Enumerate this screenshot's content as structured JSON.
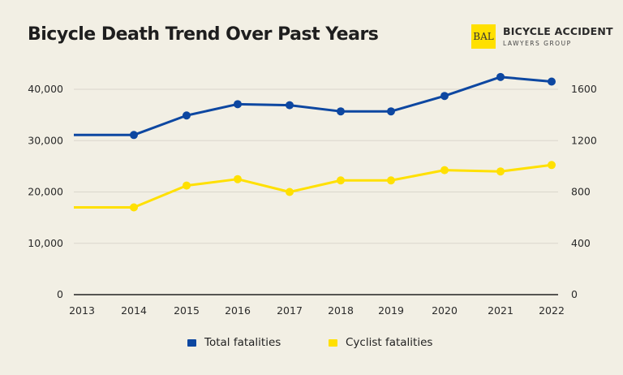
{
  "chart_data": {
    "type": "line",
    "title": "Bicycle Death Trend Over Past Years",
    "categories": [
      "2013",
      "2014",
      "2015",
      "2016",
      "2017",
      "2018",
      "2019",
      "2020",
      "2021",
      "2022"
    ],
    "series": [
      {
        "name": "Total fatalities",
        "axis": "left",
        "color": "#0d47a1",
        "values": [
          31100,
          31100,
          34900,
          37100,
          36900,
          35700,
          35700,
          38700,
          42400,
          41500
        ]
      },
      {
        "name": "Cyclist fatalities",
        "axis": "right",
        "color": "#ffe000",
        "values": [
          680,
          680,
          850,
          900,
          800,
          890,
          890,
          970,
          960,
          1010
        ]
      }
    ],
    "y_left": {
      "ylim": [
        0,
        40000
      ],
      "ticks": [
        "0",
        "10,000",
        "20,000",
        "30,000",
        "40,000"
      ],
      "tick_values": [
        0,
        10000,
        20000,
        30000,
        40000
      ]
    },
    "y_right": {
      "ylim": [
        0,
        1600
      ],
      "ticks": [
        "0",
        "400",
        "800",
        "1200",
        "1600"
      ],
      "tick_values": [
        0,
        400,
        800,
        1200,
        1600
      ]
    },
    "grid": true,
    "legend_position": "bottom"
  },
  "logo": {
    "monogram": "BAL",
    "name": "Bicycle Accident",
    "subtitle": "Lawyers Group",
    "color": "#ffe000"
  }
}
